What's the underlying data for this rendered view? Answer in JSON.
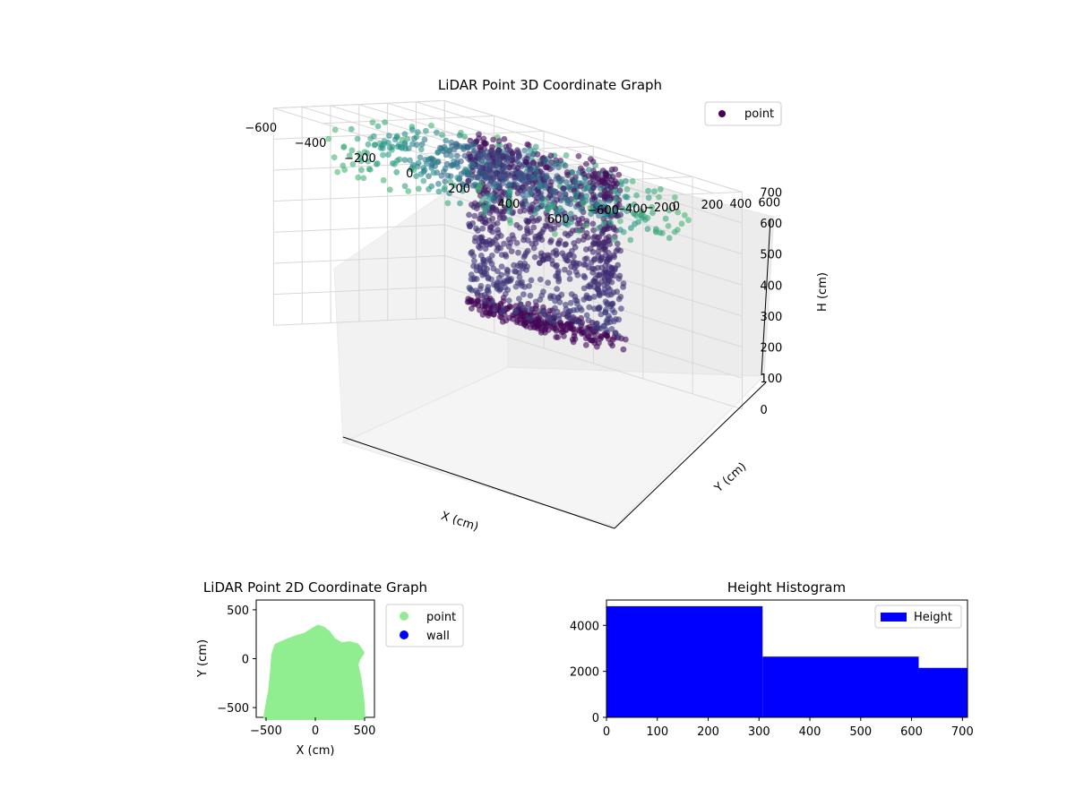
{
  "chart_data": [
    {
      "type": "scatter",
      "projection": "3d",
      "title": "LiDAR Point 3D Coordinate Graph",
      "xlabel": "X (cm)",
      "ylabel": "Y (cm)",
      "zlabel": "H (cm)",
      "xlim": [
        -600,
        600
      ],
      "ylim": [
        -600,
        600
      ],
      "zlim": [
        700,
        0
      ],
      "xticks": [
        "−600",
        "−400",
        "−200",
        "0",
        "200",
        "400",
        "600"
      ],
      "yticks": [
        "−600",
        "−400",
        "−200",
        "0",
        "200",
        "400",
        "600"
      ],
      "zticks": [
        "0",
        "100",
        "200",
        "300",
        "400",
        "500",
        "600",
        "700"
      ],
      "legend": {
        "placement": "upper-right",
        "entries": [
          {
            "label": "point",
            "color": "#440154"
          }
        ]
      },
      "colormap": "viridis",
      "grid": true,
      "note_visible_structure": "radial scan rays over floor plus dense cylindrical cluster of points near the center-top",
      "series": [
        {
          "name": "point",
          "color_low": "#440154",
          "color_high": "#21918c"
        }
      ]
    },
    {
      "type": "scatter",
      "title": "LiDAR Point 2D Coordinate Graph",
      "xlabel": "X (cm)",
      "ylabel": "Y (cm)",
      "xlim": [
        -600,
        600
      ],
      "ylim": [
        -600,
        600
      ],
      "xticks": [
        "−500",
        "0",
        "500"
      ],
      "yticks": [
        "500",
        "0",
        "−500"
      ],
      "legend": {
        "placement": "outside-right",
        "entries": [
          {
            "label": "point",
            "color": "#90ee90"
          },
          {
            "label": "wall",
            "color": "#0000ff"
          }
        ]
      },
      "footprint_outline": [
        [
          -500,
          -600
        ],
        [
          -480,
          -480
        ],
        [
          -450,
          -320
        ],
        [
          -430,
          -100
        ],
        [
          -420,
          40
        ],
        [
          -390,
          130
        ],
        [
          -300,
          170
        ],
        [
          -200,
          210
        ],
        [
          -100,
          240
        ],
        [
          -20,
          290
        ],
        [
          30,
          320
        ],
        [
          80,
          300
        ],
        [
          130,
          260
        ],
        [
          180,
          190
        ],
        [
          260,
          140
        ],
        [
          350,
          150
        ],
        [
          420,
          130
        ],
        [
          470,
          60
        ],
        [
          430,
          0
        ],
        [
          410,
          -60
        ],
        [
          440,
          -200
        ],
        [
          470,
          -420
        ],
        [
          480,
          -600
        ]
      ]
    },
    {
      "type": "bar",
      "subtype": "histogram",
      "title": "Height Histogram",
      "xlim": [
        0,
        710
      ],
      "ylim": [
        0,
        5100
      ],
      "xticks": [
        "0",
        "100",
        "200",
        "300",
        "400",
        "500",
        "600",
        "700"
      ],
      "yticks": [
        "0",
        "2000",
        "4000"
      ],
      "legend": {
        "placement": "upper-right",
        "entries": [
          {
            "label": "Height",
            "color": "#0000ff"
          }
        ]
      },
      "bins": [
        {
          "x0": 0,
          "x1": 307,
          "count": 4830
        },
        {
          "x0": 307,
          "x1": 614,
          "count": 2640
        },
        {
          "x0": 614,
          "x1": 710,
          "count": 2150
        }
      ]
    }
  ]
}
